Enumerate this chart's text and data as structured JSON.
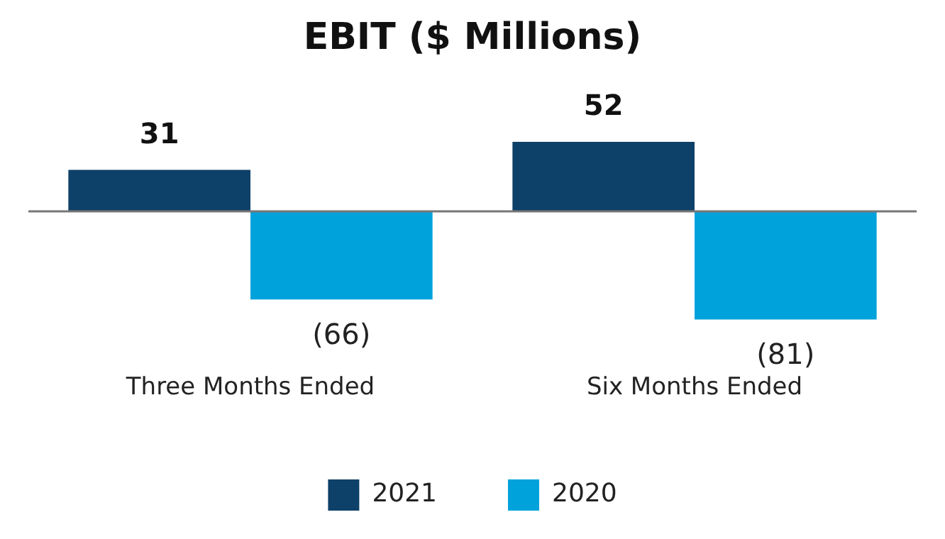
{
  "chart_data": {
    "type": "bar",
    "title": "EBIT ($ Millions)",
    "categories": [
      "Three Months Ended",
      "Six Months Ended"
    ],
    "series": [
      {
        "name": "2021",
        "color": "#0e4169",
        "values": [
          31,
          52
        ],
        "value_labels": [
          "31",
          "52"
        ]
      },
      {
        "name": "2020",
        "color": "#00a2dc",
        "values": [
          -66,
          -81
        ],
        "value_labels": [
          "(66)",
          "(81)"
        ]
      }
    ],
    "legend": "bottom",
    "grid": false
  }
}
